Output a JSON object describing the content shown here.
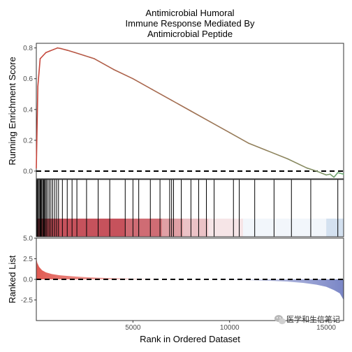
{
  "colors": {
    "curve_start": "#c8443a",
    "curve_end": "#6aaa72",
    "heat_red": "#c6525c",
    "heat_blue": "#a9c2e1",
    "ranked_red": "#e05a52",
    "ranked_blue": "#7a86c6",
    "zero_line": "#000000",
    "panel_border": "#333333"
  },
  "watermark": {
    "icon": "wechat-icon",
    "text": "医学和生信笔记"
  },
  "chart_data": [
    {
      "type": "line",
      "panel": "running-score",
      "title": [
        "Antimicrobial Humoral",
        "Immune Response Mediated By",
        "Antimicrobial Peptide"
      ],
      "ylabel": "Running Enrichment Score",
      "xlim": [
        1,
        15900
      ],
      "ylim": [
        -0.05,
        0.83
      ],
      "yticks": [
        0.0,
        0.2,
        0.4,
        0.6,
        0.8
      ],
      "ytick_labels": [
        "0.0",
        "0.2",
        "0.4",
        "0.6",
        "0.8"
      ],
      "grid": false,
      "reference_line": 0,
      "x": [
        1,
        80,
        200,
        350,
        500,
        700,
        900,
        1100,
        1300,
        1600,
        2000,
        2500,
        3000,
        4000,
        5000,
        6000,
        7000,
        8000,
        9000,
        10000,
        11000,
        12000,
        13000,
        14000,
        14500,
        15000,
        15200,
        15400,
        15600,
        15900
      ],
      "y": [
        0.02,
        0.55,
        0.73,
        0.75,
        0.77,
        0.78,
        0.79,
        0.8,
        0.795,
        0.785,
        0.77,
        0.75,
        0.73,
        0.66,
        0.6,
        0.53,
        0.46,
        0.39,
        0.32,
        0.25,
        0.18,
        0.13,
        0.08,
        0.02,
        0.0,
        -0.025,
        -0.02,
        -0.04,
        -0.01,
        -0.02
      ]
    },
    {
      "type": "heatmap",
      "panel": "gene-hits",
      "hit_positions": [
        20,
        60,
        100,
        150,
        200,
        240,
        280,
        330,
        380,
        420,
        470,
        520,
        600,
        680,
        760,
        850,
        950,
        1050,
        1150,
        1350,
        1600,
        1850,
        2100,
        2600,
        3200,
        3800,
        4600,
        5000,
        5300,
        5900,
        6400,
        6900,
        7000,
        7100,
        7500,
        8000,
        8400,
        8800,
        9200,
        10200,
        10500,
        11300,
        12300,
        13200,
        14200,
        15600
      ],
      "color_bands": [
        {
          "from": 1,
          "to": 4600,
          "level": 1.0
        },
        {
          "from": 4600,
          "to": 6500,
          "level": 0.85
        },
        {
          "from": 6500,
          "to": 7600,
          "level": 0.55
        },
        {
          "from": 7600,
          "to": 8900,
          "level": 0.35
        },
        {
          "from": 8900,
          "to": 10700,
          "level": 0.15
        },
        {
          "from": 10700,
          "to": 15000,
          "level": -0.15
        },
        {
          "from": 15000,
          "to": 15900,
          "level": -0.5
        }
      ]
    },
    {
      "type": "area",
      "panel": "ranked-list",
      "xlabel": "Rank in Ordered Dataset",
      "ylabel": "Ranked List",
      "xlim": [
        1,
        15900
      ],
      "ylim": [
        -5,
        5
      ],
      "yticks": [
        -2.5,
        0.0,
        2.5,
        5.0
      ],
      "ytick_labels": [
        "-2.5",
        "0.0",
        "2.5",
        "5.0"
      ],
      "xticks": [
        5000,
        10000,
        15000
      ],
      "xtick_labels": [
        "5000",
        "10000",
        "15000"
      ],
      "reference_line": 0,
      "x": [
        1,
        50,
        150,
        300,
        500,
        800,
        1200,
        1800,
        2500,
        3500,
        5000,
        6500,
        8000,
        9500,
        11000,
        12000,
        13000,
        13800,
        14500,
        15000,
        15400,
        15700,
        15900
      ],
      "y": [
        2.6,
        2.0,
        1.5,
        1.1,
        0.85,
        0.65,
        0.5,
        0.38,
        0.28,
        0.18,
        0.08,
        0.02,
        -0.01,
        -0.04,
        -0.1,
        -0.17,
        -0.28,
        -0.42,
        -0.65,
        -0.9,
        -1.3,
        -1.7,
        -2.5
      ]
    }
  ]
}
